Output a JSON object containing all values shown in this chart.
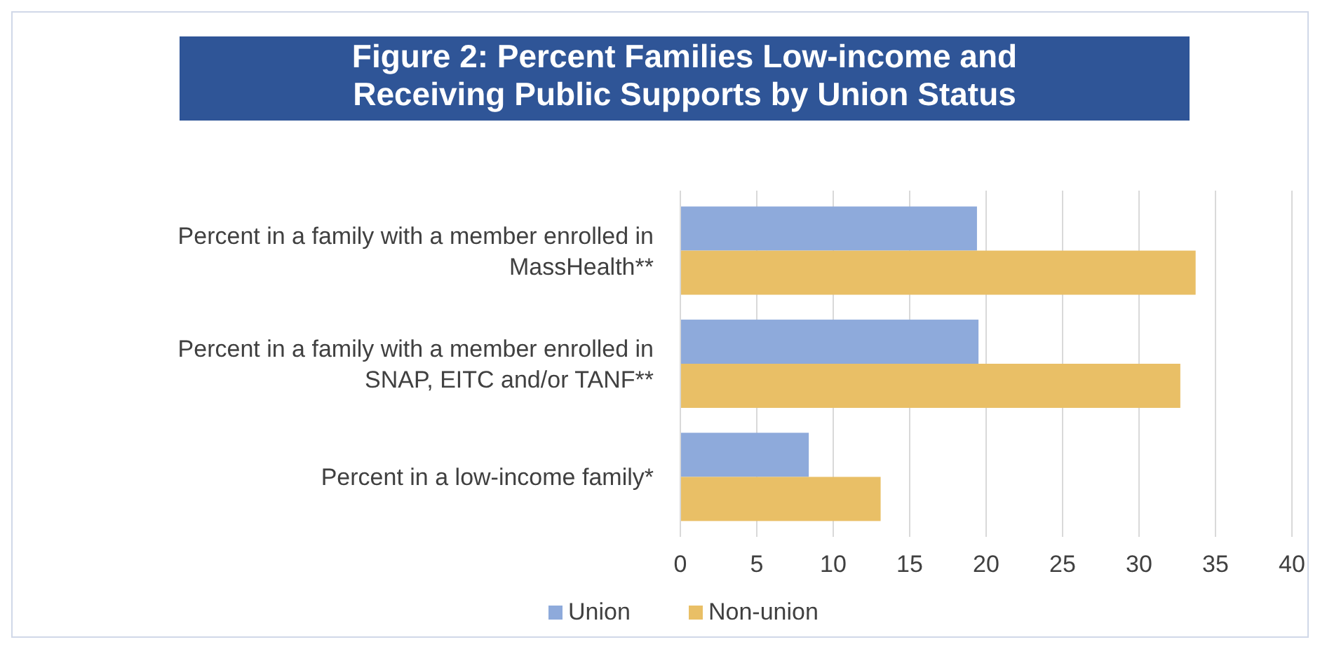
{
  "chart_data": {
    "type": "bar",
    "orientation": "horizontal",
    "title": "Figure 2: Percent Families Low-income and Receiving Public Supports by Union Status",
    "categories": [
      "Percent in a family with a member enrolled in MassHealth**",
      "Percent in a family with a member enrolled in SNAP, EITC and/or TANF**",
      "Percent in a low-income family*"
    ],
    "series": [
      {
        "name": "Union",
        "color": "#8eaadb",
        "values": [
          19.4,
          19.5,
          8.4
        ]
      },
      {
        "name": "Non-union",
        "color": "#e9bf66",
        "values": [
          33.7,
          32.7,
          13.1
        ]
      }
    ],
    "xlim": [
      0,
      40
    ],
    "xticks": [
      0,
      5,
      10,
      15,
      20,
      25,
      30,
      35,
      40
    ],
    "grid": "x",
    "legend": "bottom"
  }
}
